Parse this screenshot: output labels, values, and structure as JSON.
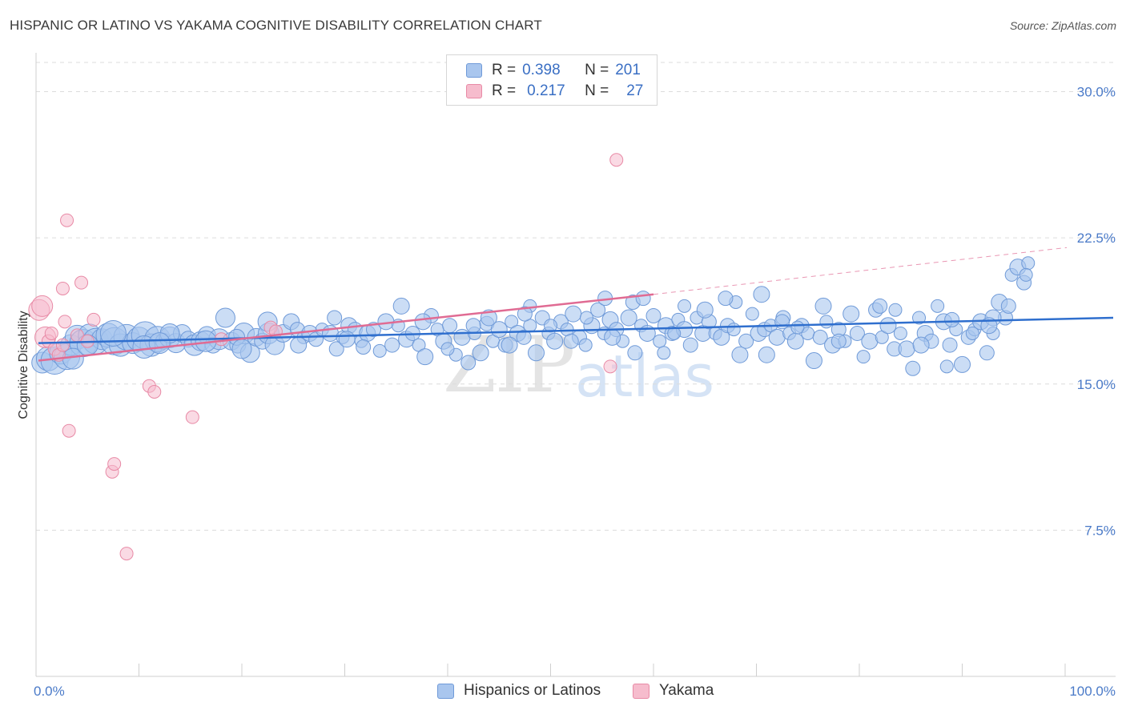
{
  "title": "HISPANIC OR LATINO VS YAKAMA COGNITIVE DISABILITY CORRELATION CHART",
  "source": "Source: ZipAtlas.com",
  "watermark": {
    "zip": "ZIP",
    "atlas": "atlas"
  },
  "legend": {
    "rows": [
      {
        "r_label": "R =",
        "r_value": "0.398",
        "n_label": "N =",
        "n_value": "201"
      },
      {
        "r_label": "R =",
        "r_value": "0.217",
        "n_label": "N =",
        "n_value": "27"
      }
    ]
  },
  "bottom_legend": [
    "Hispanics or Latinos",
    "Yakama"
  ],
  "colors": {
    "blue_fill": "#a9c6ee",
    "blue_stroke": "#6f9ad8",
    "blue_line": "#2f6fce",
    "pink_fill": "#f6bccd",
    "pink_stroke": "#e88aa6",
    "pink_line": "#e06b93",
    "tick_text": "#4a7ac8",
    "grid": "#dcdcdc"
  },
  "chart_data": {
    "type": "scatter",
    "title": "HISPANIC OR LATINO VS YAKAMA COGNITIVE DISABILITY CORRELATION CHART",
    "xlabel": "",
    "ylabel": "Cognitive Disability",
    "xlim": [
      0,
      100
    ],
    "ylim": [
      0,
      31.5
    ],
    "x_tick_labels": [
      "0.0%",
      "100.0%"
    ],
    "y_ticks": [
      7.5,
      15.0,
      22.5,
      30.0
    ],
    "y_tick_labels": [
      "7.5%",
      "15.0%",
      "22.5%",
      "30.0%"
    ],
    "grid": true,
    "legend_position": "top-center",
    "series": [
      {
        "name": "Hispanics or Latinos",
        "r": 0.398,
        "n": 201,
        "trend": {
          "x": [
            0,
            100
          ],
          "y": [
            17.1,
            18.4
          ]
        },
        "points": [
          [
            0.6,
            16.1
          ],
          [
            1.2,
            16.3
          ],
          [
            1.8,
            16.2
          ],
          [
            2.4,
            16.6
          ],
          [
            3.0,
            16.4
          ],
          [
            3.4,
            17.0
          ],
          [
            4.0,
            17.4
          ],
          [
            4.6,
            17.1
          ],
          [
            5.2,
            17.5
          ],
          [
            5.8,
            17.2
          ],
          [
            6.4,
            17.3
          ],
          [
            7.0,
            17.5
          ],
          [
            7.6,
            17.2
          ],
          [
            8.2,
            17.0
          ],
          [
            8.8,
            17.4
          ],
          [
            9.4,
            17.1
          ],
          [
            10.0,
            17.3
          ],
          [
            10.6,
            17.5
          ],
          [
            11.2,
            17.0
          ],
          [
            11.8,
            17.3
          ],
          [
            12.4,
            17.2
          ],
          [
            13.0,
            17.4
          ],
          [
            13.6,
            17.1
          ],
          [
            14.2,
            17.6
          ],
          [
            14.8,
            17.3
          ],
          [
            15.4,
            17.0
          ],
          [
            16.0,
            17.2
          ],
          [
            16.6,
            17.5
          ],
          [
            17.2,
            17.0
          ],
          [
            17.8,
            17.3
          ],
          [
            18.4,
            18.4
          ],
          [
            19.0,
            17.2
          ],
          [
            19.6,
            17.0
          ],
          [
            20.2,
            17.6
          ],
          [
            20.8,
            16.6
          ],
          [
            21.4,
            17.4
          ],
          [
            22.0,
            17.2
          ],
          [
            22.6,
            17.6
          ],
          [
            23.2,
            17.0
          ],
          [
            24.0,
            17.6
          ],
          [
            24.8,
            18.2
          ],
          [
            25.4,
            17.8
          ],
          [
            26.0,
            17.4
          ],
          [
            26.6,
            17.6
          ],
          [
            27.2,
            17.3
          ],
          [
            27.8,
            17.8
          ],
          [
            28.6,
            17.6
          ],
          [
            29.2,
            16.8
          ],
          [
            29.8,
            17.4
          ],
          [
            30.4,
            18.0
          ],
          [
            31.0,
            17.8
          ],
          [
            31.6,
            17.2
          ],
          [
            32.2,
            17.6
          ],
          [
            32.8,
            17.8
          ],
          [
            33.4,
            16.7
          ],
          [
            34.0,
            18.2
          ],
          [
            34.6,
            17.0
          ],
          [
            35.2,
            18.0
          ],
          [
            36.0,
            17.3
          ],
          [
            36.6,
            17.6
          ],
          [
            37.2,
            17.0
          ],
          [
            37.8,
            16.4
          ],
          [
            38.4,
            18.5
          ],
          [
            39.0,
            17.8
          ],
          [
            39.6,
            17.2
          ],
          [
            40.2,
            18.0
          ],
          [
            40.8,
            16.5
          ],
          [
            41.4,
            17.4
          ],
          [
            42.0,
            16.1
          ],
          [
            42.6,
            17.6
          ],
          [
            43.2,
            16.6
          ],
          [
            43.8,
            18.1
          ],
          [
            44.4,
            17.2
          ],
          [
            45.0,
            17.8
          ],
          [
            45.6,
            17.0
          ],
          [
            46.2,
            18.2
          ],
          [
            46.8,
            17.6
          ],
          [
            47.4,
            17.4
          ],
          [
            48.0,
            18.0
          ],
          [
            48.6,
            16.6
          ],
          [
            49.2,
            18.4
          ],
          [
            49.8,
            17.6
          ],
          [
            50.4,
            17.2
          ],
          [
            51.0,
            18.2
          ],
          [
            51.6,
            17.8
          ],
          [
            52.2,
            18.6
          ],
          [
            52.8,
            17.4
          ],
          [
            53.4,
            17.0
          ],
          [
            54.0,
            18.0
          ],
          [
            54.6,
            18.8
          ],
          [
            55.2,
            17.6
          ],
          [
            55.8,
            18.3
          ],
          [
            56.4,
            17.8
          ],
          [
            57.0,
            17.2
          ],
          [
            57.6,
            18.4
          ],
          [
            58.2,
            16.6
          ],
          [
            58.8,
            18.0
          ],
          [
            59.4,
            17.6
          ],
          [
            60.0,
            18.5
          ],
          [
            60.6,
            17.2
          ],
          [
            61.2,
            18.0
          ],
          [
            61.8,
            17.6
          ],
          [
            62.4,
            18.3
          ],
          [
            63.0,
            17.8
          ],
          [
            63.6,
            17.0
          ],
          [
            64.2,
            18.4
          ],
          [
            64.8,
            17.6
          ],
          [
            65.4,
            18.2
          ],
          [
            66.0,
            17.6
          ],
          [
            66.6,
            17.4
          ],
          [
            67.2,
            18.0
          ],
          [
            67.8,
            17.8
          ],
          [
            68.4,
            16.5
          ],
          [
            69.0,
            17.2
          ],
          [
            69.6,
            18.6
          ],
          [
            70.2,
            17.6
          ],
          [
            70.8,
            17.8
          ],
          [
            71.4,
            18.0
          ],
          [
            72.0,
            17.4
          ],
          [
            72.6,
            18.4
          ],
          [
            73.2,
            17.6
          ],
          [
            73.8,
            17.2
          ],
          [
            74.4,
            18.0
          ],
          [
            75.0,
            17.6
          ],
          [
            75.6,
            16.2
          ],
          [
            76.2,
            17.4
          ],
          [
            76.8,
            18.2
          ],
          [
            77.4,
            17.0
          ],
          [
            78.0,
            17.8
          ],
          [
            78.6,
            17.2
          ],
          [
            79.2,
            18.6
          ],
          [
            79.8,
            17.6
          ],
          [
            80.4,
            16.4
          ],
          [
            81.0,
            17.2
          ],
          [
            81.6,
            18.8
          ],
          [
            82.2,
            17.4
          ],
          [
            82.8,
            18.0
          ],
          [
            83.4,
            16.8
          ],
          [
            84.0,
            17.6
          ],
          [
            84.6,
            16.8
          ],
          [
            85.2,
            15.8
          ],
          [
            85.8,
            18.4
          ],
          [
            86.4,
            17.6
          ],
          [
            87.0,
            17.2
          ],
          [
            87.6,
            19.0
          ],
          [
            88.2,
            18.2
          ],
          [
            88.8,
            17.0
          ],
          [
            89.4,
            17.8
          ],
          [
            90.0,
            16.0
          ],
          [
            90.6,
            17.4
          ],
          [
            91.2,
            17.8
          ],
          [
            91.8,
            18.2
          ],
          [
            92.4,
            16.6
          ],
          [
            93.0,
            17.6
          ],
          [
            93.6,
            19.2
          ],
          [
            94.2,
            18.4
          ],
          [
            94.8,
            20.6
          ],
          [
            95.4,
            21.0
          ],
          [
            96.0,
            20.2
          ],
          [
            96.4,
            21.2
          ],
          [
            37.6,
            18.2
          ],
          [
            58.0,
            19.2
          ],
          [
            68.0,
            19.2
          ],
          [
            70.5,
            19.6
          ],
          [
            55.3,
            19.4
          ],
          [
            48.0,
            19.0
          ],
          [
            22.5,
            18.2
          ],
          [
            29.0,
            18.4
          ],
          [
            63.0,
            19.0
          ],
          [
            35.5,
            19.0
          ],
          [
            42.5,
            18.0
          ],
          [
            50.0,
            18.0
          ],
          [
            46.0,
            17.0
          ],
          [
            52.0,
            17.2
          ],
          [
            61.0,
            16.6
          ],
          [
            71.0,
            16.5
          ],
          [
            72.5,
            18.2
          ],
          [
            88.5,
            15.9
          ],
          [
            93.0,
            18.4
          ],
          [
            82.0,
            19.0
          ],
          [
            19.5,
            17.4
          ],
          [
            16.5,
            17.2
          ],
          [
            13.0,
            17.6
          ],
          [
            10.5,
            16.9
          ],
          [
            7.5,
            17.6
          ],
          [
            3.6,
            16.3
          ],
          [
            20.0,
            16.8
          ],
          [
            25.5,
            17.0
          ],
          [
            31.8,
            16.9
          ],
          [
            40.0,
            16.8
          ],
          [
            44.0,
            18.4
          ],
          [
            47.5,
            18.6
          ],
          [
            53.5,
            18.4
          ],
          [
            56.0,
            17.4
          ],
          [
            59.0,
            19.4
          ],
          [
            62.0,
            17.6
          ],
          [
            65.0,
            18.8
          ],
          [
            67.0,
            19.4
          ],
          [
            74.0,
            17.9
          ],
          [
            76.5,
            19.0
          ],
          [
            78.0,
            17.2
          ],
          [
            83.5,
            18.8
          ],
          [
            86.0,
            17.0
          ],
          [
            89.0,
            18.3
          ],
          [
            91.0,
            17.6
          ],
          [
            92.6,
            18.0
          ],
          [
            94.5,
            19.0
          ],
          [
            96.2,
            20.6
          ],
          [
            30.2,
            17.3
          ],
          [
            12.0,
            17.1
          ],
          [
            5.0,
            17.0
          ]
        ]
      },
      {
        "name": "Yakama",
        "r": 0.217,
        "n": 27,
        "trend": {
          "x": [
            0,
            60
          ],
          "y": [
            16.2,
            19.6
          ]
        },
        "trend_dashed": {
          "x": [
            60,
            100
          ],
          "y": [
            19.6,
            22.0
          ]
        },
        "points": [
          [
            0.3,
            18.8
          ],
          [
            0.6,
            19.0
          ],
          [
            0.9,
            17.4
          ],
          [
            1.2,
            17.2
          ],
          [
            1.5,
            17.6
          ],
          [
            1.8,
            16.8
          ],
          [
            2.2,
            16.5
          ],
          [
            2.6,
            17.0
          ],
          [
            2.6,
            19.9
          ],
          [
            2.8,
            18.2
          ],
          [
            3.0,
            23.4
          ],
          [
            3.2,
            12.6
          ],
          [
            4.0,
            17.5
          ],
          [
            4.4,
            20.2
          ],
          [
            5.0,
            17.2
          ],
          [
            5.6,
            18.3
          ],
          [
            7.4,
            10.5
          ],
          [
            7.6,
            10.9
          ],
          [
            8.8,
            6.3
          ],
          [
            11.0,
            14.9
          ],
          [
            11.5,
            14.6
          ],
          [
            15.2,
            13.3
          ],
          [
            18.0,
            17.3
          ],
          [
            22.8,
            17.9
          ],
          [
            23.3,
            17.7
          ],
          [
            55.8,
            15.9
          ],
          [
            56.4,
            26.5
          ]
        ]
      }
    ]
  }
}
